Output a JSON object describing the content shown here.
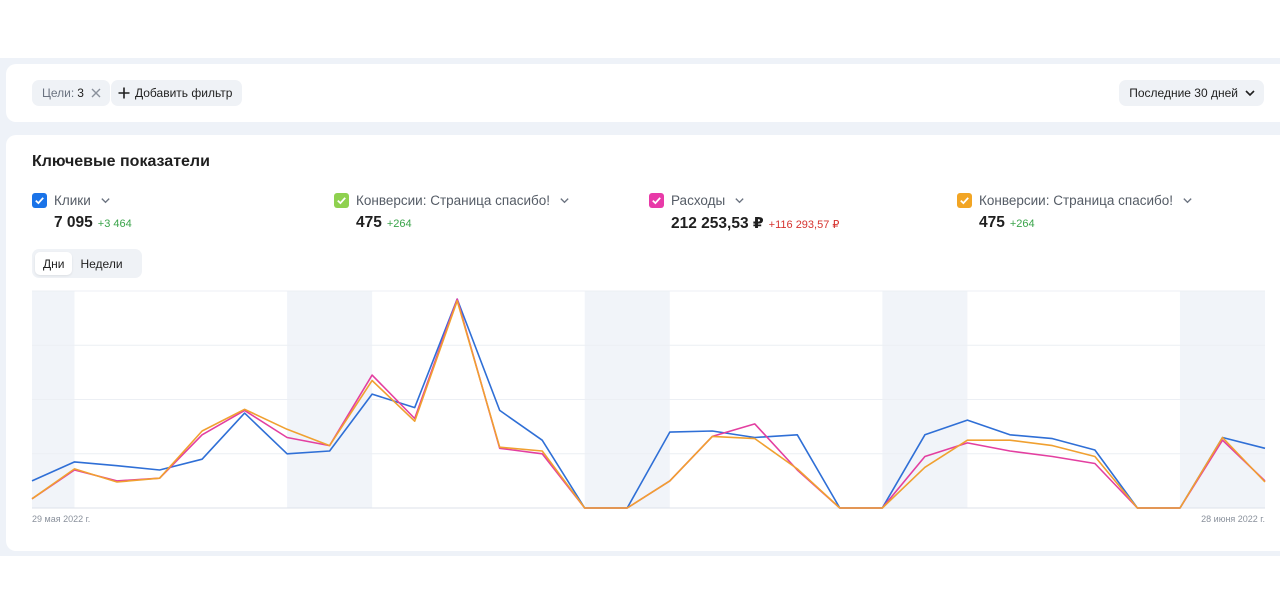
{
  "filters": {
    "goals_label": "Цели:",
    "goals_value": "3",
    "add_filter_label": "Добавить фильтр",
    "period_label": "Последние 30 дней"
  },
  "section": {
    "title": "Ключевые показатели"
  },
  "metrics": [
    {
      "label": "Клики",
      "value": "7 095",
      "delta": "+3 464",
      "delta_sign": "positive",
      "color": "#1a73e8"
    },
    {
      "label": "Конверсии: Страница спасибо!",
      "value": "475",
      "delta": "+264",
      "delta_sign": "positive",
      "color": "#8fd14f"
    },
    {
      "label": "Расходы",
      "value": "212 253,53 ₽",
      "delta": "+116 293,57 ₽",
      "delta_sign": "negative",
      "color": "#e83aa8"
    },
    {
      "label": "Конверсии: Страница спасибо!",
      "value": "475",
      "delta": "+264",
      "delta_sign": "positive",
      "color": "#f2a524"
    }
  ],
  "granularity": {
    "options": [
      "Дни",
      "Недели"
    ],
    "selected": "Дни"
  },
  "chart_data": {
    "type": "line",
    "x_start_label": "29 мая 2022 г.",
    "x_end_label": "28 июня 2022 г.",
    "ylim": [
      0,
      4
    ],
    "grid": true,
    "weekend_bands": [
      [
        0,
        1
      ],
      [
        6,
        8
      ],
      [
        13,
        15
      ],
      [
        20,
        22
      ],
      [
        27,
        29
      ]
    ],
    "series": [
      {
        "color": "#2f6fd6",
        "values": [
          0.5,
          0.85,
          0.78,
          0.7,
          0.9,
          1.75,
          1.0,
          1.05,
          2.1,
          1.85,
          3.85,
          1.8,
          1.25,
          0.0,
          0.0,
          1.4,
          1.42,
          1.3,
          1.35,
          0.0,
          0.0,
          1.35,
          1.62,
          1.35,
          1.28,
          1.07,
          0.0,
          0.0,
          1.3,
          1.1
        ]
      },
      {
        "color": "#e33fa0",
        "values": [
          0.17,
          0.7,
          0.5,
          0.55,
          1.35,
          1.8,
          1.3,
          1.15,
          2.45,
          1.65,
          3.85,
          1.1,
          1.0,
          0.0,
          0.0,
          0.5,
          1.32,
          1.55,
          0.7,
          0.0,
          0.0,
          0.95,
          1.2,
          1.05,
          0.95,
          0.82,
          0.0,
          0.0,
          1.25,
          0.5
        ]
      },
      {
        "color": "#f0a030",
        "values": [
          0.17,
          0.72,
          0.48,
          0.55,
          1.42,
          1.82,
          1.45,
          1.15,
          2.35,
          1.6,
          3.82,
          1.12,
          1.05,
          0.0,
          0.0,
          0.5,
          1.32,
          1.28,
          0.72,
          0.0,
          0.0,
          0.75,
          1.25,
          1.25,
          1.15,
          0.95,
          0.0,
          0.0,
          1.3,
          0.48
        ]
      }
    ]
  }
}
